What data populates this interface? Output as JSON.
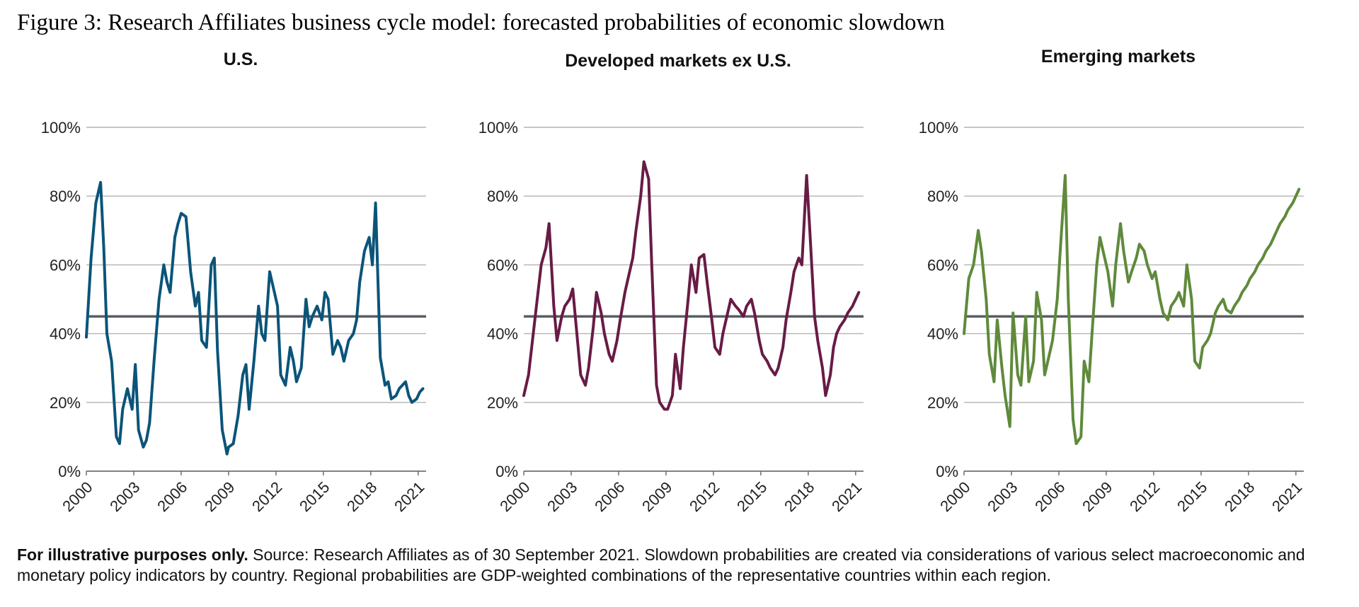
{
  "title": "Figure 3: Research Affiliates business cycle model: forecasted probabilities of economic slowdown",
  "footnote": {
    "bold": "For illustrative purposes only.",
    "text": " Source: Research Affiliates as of 30 September 2021. Slowdown probabilities are created via considerations of various select macroeconomic and monetary policy indicators by country. Regional probabilities are GDP-weighted combinations of the representative countries within each region."
  },
  "chart_data": [
    {
      "type": "line",
      "title": "U.S.",
      "color": "#0b5479",
      "x_ticks": [
        "2000",
        "2003",
        "2006",
        "2009",
        "2012",
        "2015",
        "2018",
        "2021"
      ],
      "y_ticks": [
        "0%",
        "20%",
        "40%",
        "60%",
        "80%",
        "100%"
      ],
      "ylim": [
        0,
        100
      ],
      "xlim": [
        2000,
        2021.5
      ],
      "grid": true,
      "reference_line": 45,
      "series": [
        {
          "x": [
            2000.0,
            2000.3,
            2000.6,
            2000.9,
            2001.1,
            2001.3,
            2001.6,
            2001.9,
            2002.1,
            2002.3,
            2002.6,
            2002.9,
            2003.1,
            2003.3,
            2003.6,
            2003.8,
            2004.0,
            2004.3,
            2004.6,
            2004.9,
            2005.1,
            2005.3,
            2005.6,
            2005.8,
            2006.0,
            2006.3,
            2006.6,
            2006.9,
            2007.1,
            2007.3,
            2007.6,
            2007.9,
            2008.1,
            2008.3,
            2008.6,
            2008.9,
            2009.0,
            2009.3,
            2009.6,
            2009.9,
            2010.1,
            2010.3,
            2010.6,
            2010.9,
            2011.1,
            2011.3,
            2011.6,
            2011.9,
            2012.1,
            2012.3,
            2012.6,
            2012.9,
            2013.1,
            2013.3,
            2013.6,
            2013.9,
            2014.1,
            2014.3,
            2014.6,
            2014.9,
            2015.1,
            2015.3,
            2015.6,
            2015.9,
            2016.1,
            2016.3,
            2016.6,
            2016.9,
            2017.1,
            2017.3,
            2017.6,
            2017.9,
            2018.1,
            2018.3,
            2018.6,
            2018.9,
            2019.1,
            2019.3,
            2019.6,
            2019.8,
            2020.0,
            2020.2,
            2020.4,
            2020.6,
            2020.9,
            2021.1,
            2021.3
          ],
          "y": [
            39,
            62,
            78,
            84,
            65,
            40,
            32,
            10,
            8,
            18,
            24,
            18,
            31,
            12,
            7,
            9,
            14,
            33,
            50,
            60,
            55,
            52,
            68,
            72,
            75,
            74,
            58,
            48,
            52,
            38,
            36,
            60,
            62,
            35,
            12,
            5,
            7,
            8,
            16,
            28,
            31,
            18,
            32,
            48,
            40,
            38,
            58,
            52,
            48,
            28,
            25,
            36,
            32,
            26,
            30,
            50,
            42,
            45,
            48,
            44,
            52,
            50,
            34,
            38,
            36,
            32,
            38,
            40,
            44,
            55,
            64,
            68,
            60,
            78,
            33,
            25,
            26,
            21,
            22,
            24,
            25,
            26,
            22,
            20,
            21,
            23,
            24
          ]
        }
      ]
    },
    {
      "type": "line",
      "title": "Developed markets ex U.S.",
      "color": "#681b45",
      "x_ticks": [
        "2000",
        "2003",
        "2006",
        "2009",
        "2012",
        "2015",
        "2018",
        "2021"
      ],
      "y_ticks": [
        "0%",
        "20%",
        "40%",
        "60%",
        "80%",
        "100%"
      ],
      "ylim": [
        0,
        100
      ],
      "xlim": [
        2000,
        2021.5
      ],
      "grid": true,
      "reference_line": 45,
      "series": [
        {
          "x": [
            2000.0,
            2000.3,
            2000.6,
            2000.9,
            2001.1,
            2001.4,
            2001.6,
            2001.9,
            2002.1,
            2002.4,
            2002.6,
            2002.9,
            2003.1,
            2003.4,
            2003.6,
            2003.9,
            2004.1,
            2004.4,
            2004.6,
            2004.9,
            2005.1,
            2005.4,
            2005.6,
            2005.9,
            2006.1,
            2006.4,
            2006.6,
            2006.9,
            2007.1,
            2007.4,
            2007.6,
            2007.9,
            2008.1,
            2008.4,
            2008.6,
            2008.9,
            2009.1,
            2009.4,
            2009.6,
            2009.9,
            2010.1,
            2010.4,
            2010.6,
            2010.9,
            2011.1,
            2011.4,
            2011.6,
            2011.9,
            2012.1,
            2012.4,
            2012.6,
            2012.9,
            2013.1,
            2013.4,
            2013.6,
            2013.9,
            2014.1,
            2014.4,
            2014.6,
            2014.9,
            2015.1,
            2015.4,
            2015.6,
            2015.9,
            2016.1,
            2016.4,
            2016.6,
            2016.9,
            2017.1,
            2017.4,
            2017.6,
            2017.9,
            2018.1,
            2018.4,
            2018.6,
            2018.9,
            2019.1,
            2019.4,
            2019.6,
            2019.8,
            2020.0,
            2020.3,
            2020.5,
            2020.8,
            2021.0,
            2021.2
          ],
          "y": [
            22,
            28,
            40,
            52,
            60,
            65,
            72,
            48,
            38,
            45,
            48,
            50,
            53,
            38,
            28,
            25,
            30,
            42,
            52,
            46,
            40,
            34,
            32,
            38,
            44,
            52,
            56,
            62,
            70,
            80,
            90,
            85,
            60,
            25,
            20,
            18,
            18,
            22,
            34,
            24,
            36,
            50,
            60,
            52,
            62,
            63,
            55,
            44,
            36,
            34,
            40,
            46,
            50,
            48,
            47,
            45,
            48,
            50,
            46,
            38,
            34,
            32,
            30,
            28,
            30,
            36,
            44,
            52,
            58,
            62,
            60,
            86,
            70,
            45,
            38,
            30,
            22,
            28,
            36,
            40,
            42,
            44,
            46,
            48,
            50,
            52
          ]
        }
      ]
    },
    {
      "type": "line",
      "title": "Emerging markets",
      "color": "#5f8a3b",
      "x_ticks": [
        "2000",
        "2003",
        "2006",
        "2009",
        "2012",
        "2015",
        "2018",
        "2021"
      ],
      "y_ticks": [
        "0%",
        "20%",
        "40%",
        "60%",
        "80%",
        "100%"
      ],
      "ylim": [
        0,
        100
      ],
      "xlim": [
        2000,
        2021.5
      ],
      "grid": true,
      "reference_line": 45,
      "series": [
        {
          "x": [
            2000.0,
            2000.3,
            2000.6,
            2000.9,
            2001.1,
            2001.4,
            2001.6,
            2001.9,
            2002.1,
            2002.4,
            2002.6,
            2002.9,
            2003.1,
            2003.4,
            2003.6,
            2003.9,
            2004.1,
            2004.4,
            2004.6,
            2004.9,
            2005.1,
            2005.4,
            2005.6,
            2005.9,
            2006.1,
            2006.4,
            2006.6,
            2006.9,
            2007.1,
            2007.4,
            2007.6,
            2007.9,
            2008.1,
            2008.4,
            2008.6,
            2008.9,
            2009.1,
            2009.4,
            2009.6,
            2009.9,
            2010.1,
            2010.4,
            2010.6,
            2010.9,
            2011.1,
            2011.4,
            2011.6,
            2011.9,
            2012.1,
            2012.4,
            2012.6,
            2012.9,
            2013.1,
            2013.4,
            2013.6,
            2013.9,
            2014.1,
            2014.4,
            2014.6,
            2014.9,
            2015.1,
            2015.4,
            2015.6,
            2015.9,
            2016.1,
            2016.4,
            2016.6,
            2016.9,
            2017.1,
            2017.4,
            2017.6,
            2017.9,
            2018.1,
            2018.4,
            2018.6,
            2018.9,
            2019.1,
            2019.4,
            2019.6,
            2019.8,
            2020.0,
            2020.3,
            2020.5,
            2020.8,
            2021.0,
            2021.2
          ],
          "y": [
            40,
            56,
            60,
            70,
            64,
            50,
            34,
            26,
            44,
            30,
            22,
            13,
            46,
            28,
            25,
            45,
            26,
            32,
            52,
            44,
            28,
            34,
            38,
            50,
            65,
            86,
            50,
            15,
            8,
            10,
            32,
            26,
            40,
            60,
            68,
            62,
            58,
            48,
            60,
            72,
            64,
            55,
            58,
            62,
            66,
            64,
            60,
            56,
            58,
            50,
            46,
            44,
            48,
            50,
            52,
            48,
            60,
            50,
            32,
            30,
            36,
            38,
            40,
            46,
            48,
            50,
            47,
            46,
            48,
            50,
            52,
            54,
            56,
            58,
            60,
            62,
            64,
            66,
            68,
            70,
            72,
            74,
            76,
            78,
            80,
            82
          ]
        }
      ]
    }
  ]
}
